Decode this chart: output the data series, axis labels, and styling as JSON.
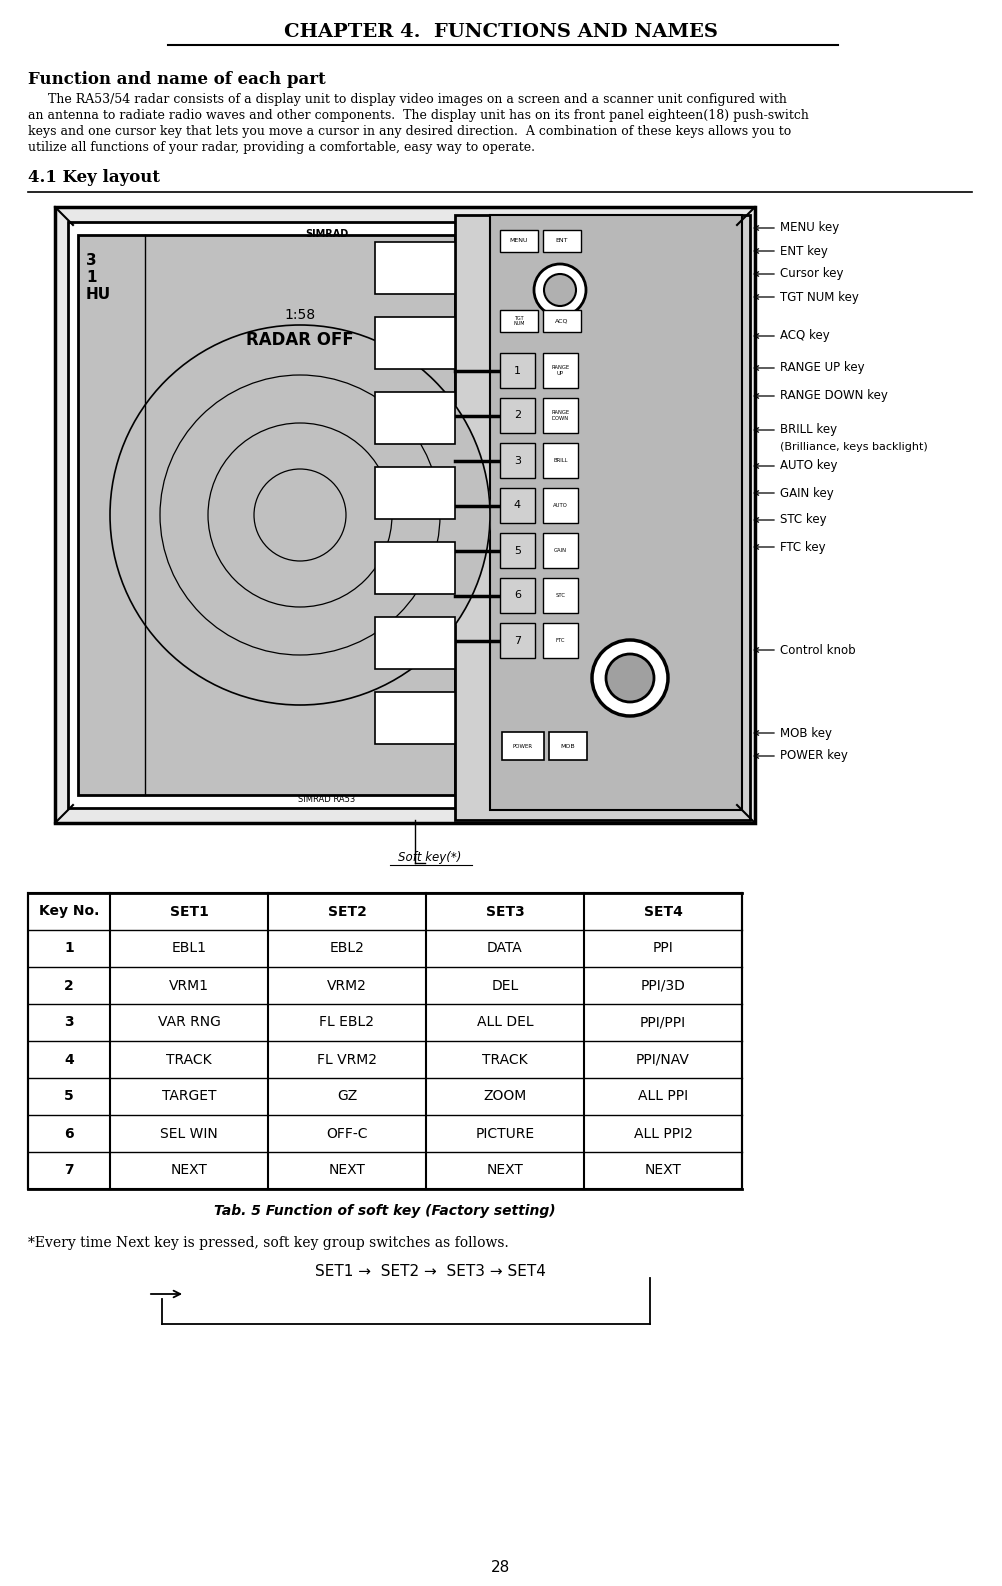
{
  "title": "CHAPTER 4.  FUNCTIONS AND NAMES",
  "section_title": "Function and name of each part",
  "body_lines": [
    "     The RA53/54 radar consists of a display unit to display video images on a screen and a scanner unit configured with",
    "an antenna to radiate radio waves and other components.  The display unit has on its front panel eighteen(18) push-switch",
    "keys and one cursor key that lets you move a cursor in any desired direction.  A combination of these keys allows you to",
    "utilize all functions of your radar, providing a comfortable, easy way to operate."
  ],
  "subsection_title": "4.1 Key layout",
  "table_caption": "Tab. 5 Function of soft key (Factory setting)",
  "note_text": "*Every time Next key is pressed, soft key group switches as follows.",
  "flow_text": "SET1 →  SET2 →  SET3 → SET4",
  "page_number": "28",
  "table_headers": [
    "Key No.",
    "SET1",
    "SET2",
    "SET3",
    "SET4"
  ],
  "table_rows": [
    [
      "1",
      "EBL1",
      "EBL2",
      "DATA",
      "PPI"
    ],
    [
      "2",
      "VRM1",
      "VRM2",
      "DEL",
      "PPI/3D"
    ],
    [
      "3",
      "VAR RNG",
      "FL EBL2",
      "ALL DEL",
      "PPI/PPI"
    ],
    [
      "4",
      "TRACK",
      "FL VRM2",
      "TRACK",
      "PPI/NAV"
    ],
    [
      "5",
      "TARGET",
      "GZ",
      "ZOOM",
      "ALL PPI"
    ],
    [
      "6",
      "SEL WIN",
      "OFF-C",
      "PICTURE",
      "ALL PPI2"
    ],
    [
      "7",
      "NEXT",
      "NEXT",
      "NEXT",
      "NEXT"
    ]
  ],
  "right_labels": [
    [
      "MENU key",
      228
    ],
    [
      "ENT key",
      251
    ],
    [
      "Cursor key",
      274
    ],
    [
      "TGT NUM key",
      297
    ],
    [
      "ACQ key",
      336
    ],
    [
      "RANGE UP key",
      368
    ],
    [
      "RANGE DOWN key",
      396
    ],
    [
      "BRILL key",
      430
    ],
    [
      "(Brilliance, keys backlight)",
      447
    ],
    [
      "AUTO key",
      466
    ],
    [
      "GAIN key",
      493
    ],
    [
      "STC key",
      520
    ],
    [
      "FTC key",
      547
    ],
    [
      "Control knob",
      650
    ],
    [
      "MOB key",
      733
    ],
    [
      "POWER key",
      756
    ]
  ],
  "soft_key_label": "Soft key(*)",
  "bg_color": "#ffffff"
}
